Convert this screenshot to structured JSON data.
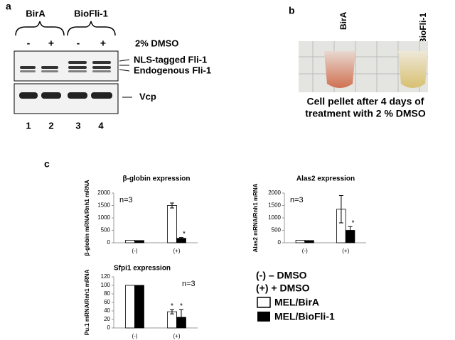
{
  "panels": {
    "a": "a",
    "b": "b",
    "c": "c"
  },
  "blot": {
    "groups": [
      "BirA",
      "BioFli-1"
    ],
    "treatments": [
      "-",
      "+",
      "-",
      "+"
    ],
    "treatment_label": "2% DMSO",
    "band_labels": [
      "NLS-tagged Fli-1",
      "Endogenous Fli-1",
      "Vcp"
    ],
    "lanes": [
      "1",
      "2",
      "3",
      "4"
    ]
  },
  "photo": {
    "tubes": [
      "BirA",
      "BioFli-1"
    ],
    "caption": [
      "Cell pellet after 4 days of",
      "treatment with 2 % DMSO"
    ]
  },
  "legend": {
    "conditions": [
      "(-) – DMSO",
      "(+) + DMSO"
    ]
  },
  "chart_data": [
    {
      "type": "bar",
      "title": "β-globin expression",
      "ylabel": "β-globin mRNA/Rnh1 mRNA",
      "annotation": "n=3",
      "categories": [
        "(-)",
        "(+)"
      ],
      "ylim": [
        0,
        2000
      ],
      "yticks": [
        0,
        500,
        1000,
        1500,
        2000
      ],
      "series": [
        {
          "name": "MEL/BirA",
          "color": "#ffffff",
          "values": [
            100,
            1500
          ],
          "errors": [
            null,
            100
          ],
          "significance": [
            null,
            null
          ]
        },
        {
          "name": "MEL/BioFli-1",
          "color": "#000000",
          "values": [
            90,
            180
          ],
          "errors": [
            null,
            30
          ],
          "significance": [
            null,
            "*"
          ]
        }
      ]
    },
    {
      "type": "bar",
      "title": "Alas2 expression",
      "ylabel": "Alas2 mRNA/Rnh1 mRNA",
      "annotation": "n=3",
      "categories": [
        "(-)",
        "(+)"
      ],
      "ylim": [
        0,
        2000
      ],
      "yticks": [
        0,
        500,
        1000,
        1500,
        2000
      ],
      "series": [
        {
          "name": "MEL/BirA",
          "color": "#ffffff",
          "values": [
            100,
            1350
          ],
          "errors": [
            null,
            550
          ],
          "significance": [
            null,
            null
          ]
        },
        {
          "name": "MEL/BioFli-1",
          "color": "#000000",
          "values": [
            90,
            500
          ],
          "errors": [
            null,
            150
          ],
          "significance": [
            null,
            "*"
          ]
        }
      ]
    },
    {
      "type": "bar",
      "title": "Sfpi1 expression",
      "ylabel": "Pu.1 mRNA/Rnh1 mRNA",
      "annotation": "n=3",
      "categories": [
        "(-)",
        "(+)"
      ],
      "ylim": [
        0,
        120
      ],
      "yticks": [
        0,
        20,
        40,
        60,
        80,
        100,
        120
      ],
      "series": [
        {
          "name": "MEL/BirA",
          "color": "#ffffff",
          "values": [
            100,
            38
          ],
          "errors": [
            null,
            5
          ],
          "significance": [
            null,
            "*"
          ]
        },
        {
          "name": "MEL/BioFli-1",
          "color": "#000000",
          "values": [
            100,
            25
          ],
          "errors": [
            null,
            18
          ],
          "significance": [
            null,
            "*"
          ]
        }
      ]
    }
  ]
}
